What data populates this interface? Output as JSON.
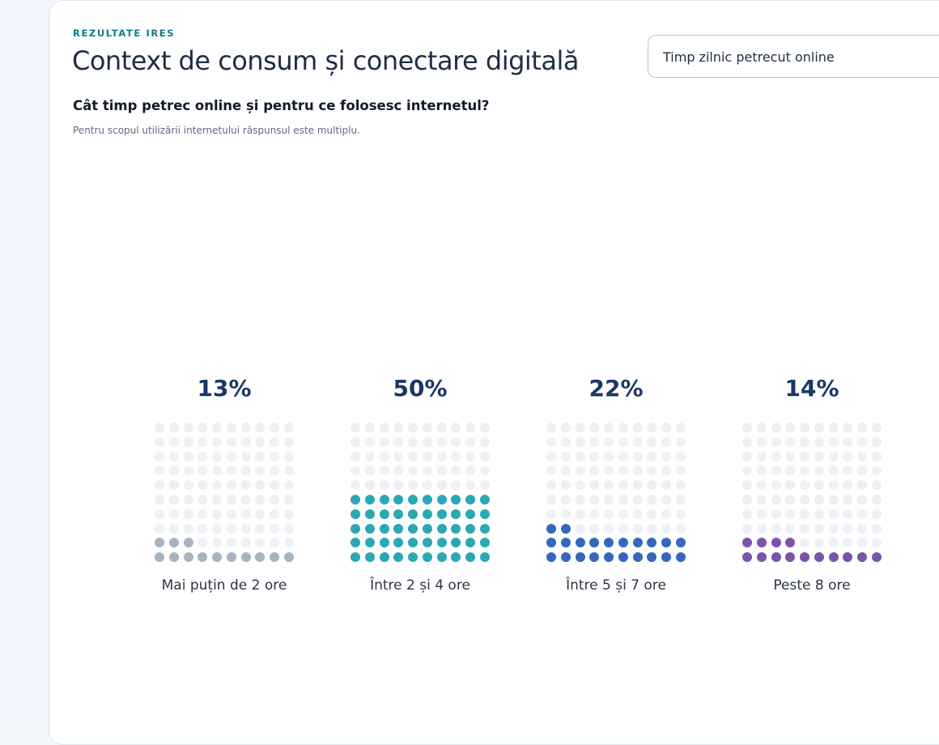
{
  "header": {
    "eyebrow": "REZULTATE IRES",
    "title": "Context de consum și conectare digitală"
  },
  "section": {
    "question": "Cât timp petrec online și pentru ce folosesc internetul?",
    "note": "Pentru scopul utilizării internetului răspunsul este multiplu."
  },
  "selector": {
    "value": "Timp zilnic petrecut online"
  },
  "chart_data": {
    "type": "waffle",
    "grid": [
      10,
      10
    ],
    "empty_color": "#edf0f5",
    "categories": [
      {
        "label": "Mai puțin de 2 ore",
        "value": 13,
        "display": "13%",
        "color": "#a7b3c1"
      },
      {
        "label": "Între 2 și 4 ore",
        "value": 50,
        "display": "50%",
        "color": "#2aa8b4"
      },
      {
        "label": "Între 5 și 7 ore",
        "value": 22,
        "display": "22%",
        "color": "#3567bd"
      },
      {
        "label": "Peste 8 ore",
        "value": 14,
        "display": "14%",
        "color": "#7b53a8"
      }
    ]
  }
}
